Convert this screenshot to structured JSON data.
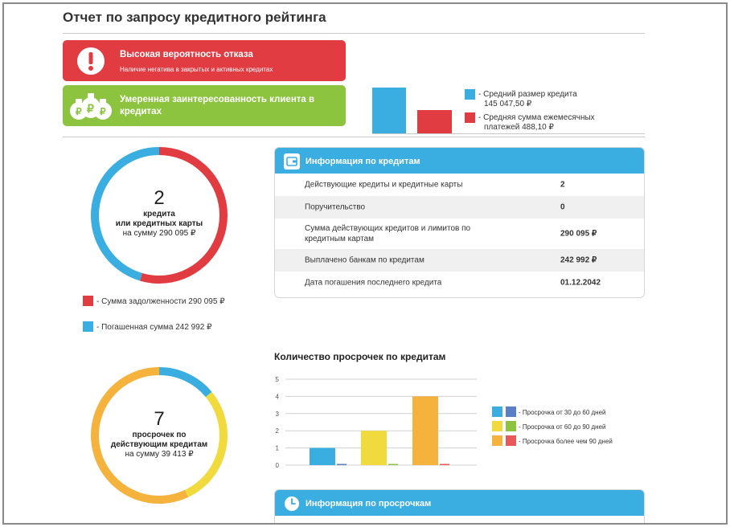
{
  "page": {
    "title": "Отчет по запросу кредитного рейтинга"
  },
  "alerts": {
    "refusal": {
      "title": "Высокая вероятность отказа",
      "subtitle": "Наличие негатива в закрытых и активных кредитах",
      "icon": "exclamation-icon",
      "color": "#e23c43"
    },
    "interest": {
      "title": "Умеренная заинтересованность клиента в кредитах",
      "icon": "money-bags-icon",
      "color": "#8cc43f"
    }
  },
  "top_chart": {
    "legend": [
      {
        "label": "- Средний размер кредита",
        "value": "145 047,50 ₽",
        "color": "#3aaee0"
      },
      {
        "label": "- Средняя сумма ежемесячных",
        "value": "платежей 488,10 ₽",
        "color": "#e23c43"
      }
    ]
  },
  "credits_donut": {
    "count": "2",
    "line1": "кредита",
    "line2": "или кредитных карты",
    "line3": "на сумму 290 095 ₽",
    "share_debt": 0.545,
    "share_paid": 0.455,
    "colors": {
      "debt": "#e23c43",
      "paid": "#3aaee0"
    }
  },
  "credits_legend": [
    {
      "label": "- Сумма задолженности 290 095 ₽",
      "color": "#e23c43"
    },
    {
      "label": "- Погашенная сумма 242 992 ₽",
      "color": "#3aaee0"
    }
  ],
  "credit_info": {
    "title": "Информация по кредитам",
    "icon": "wallet-icon",
    "rows": [
      {
        "label": "Действующие кредиты и кредитные карты",
        "value": "2"
      },
      {
        "label": "Поручительство",
        "value": "0"
      },
      {
        "label": "Сумма действующих кредитов и лимитов по кредитным картам",
        "value": "290 095 ₽"
      },
      {
        "label": "Выплачено банкам по кредитам",
        "value": "242 992 ₽"
      },
      {
        "label": "Дата погашения последнего кредита",
        "value": "01.12.2042"
      }
    ]
  },
  "overdue_donut": {
    "count": "7",
    "line1": "просрочек по",
    "line2": "действующим кредитам",
    "line3": "на сумму 39 413 ₽",
    "shares": [
      0.14,
      0.29,
      0.57
    ],
    "colors": [
      "#3aaee0",
      "#f1da3d",
      "#f5b23d"
    ]
  },
  "chart_data": {
    "type": "bar",
    "title": "Количество просрочек по кредитам",
    "ylim": [
      0,
      5
    ],
    "yticks": [
      "0",
      "1",
      "2",
      "3",
      "4",
      "5"
    ],
    "groups": 3,
    "series": [
      {
        "name": "- Просрочка от 30 до 60 дней",
        "values": [
          1,
          0,
          0
        ],
        "color": "#3aaee0",
        "alt_color": "#5b7fc4"
      },
      {
        "name": "- Просрочка от 60 до 90 дней",
        "values": [
          0,
          2,
          0
        ],
        "color": "#f1da3d",
        "alt_color": "#8cc43f"
      },
      {
        "name": "- Просрочка более чем 90 дней",
        "values": [
          0,
          0,
          4
        ],
        "color": "#f5b23d",
        "alt_color": "#e85858"
      }
    ]
  },
  "overdue_info": {
    "title": "Информация по просрочкам",
    "icon": "clock-icon"
  }
}
